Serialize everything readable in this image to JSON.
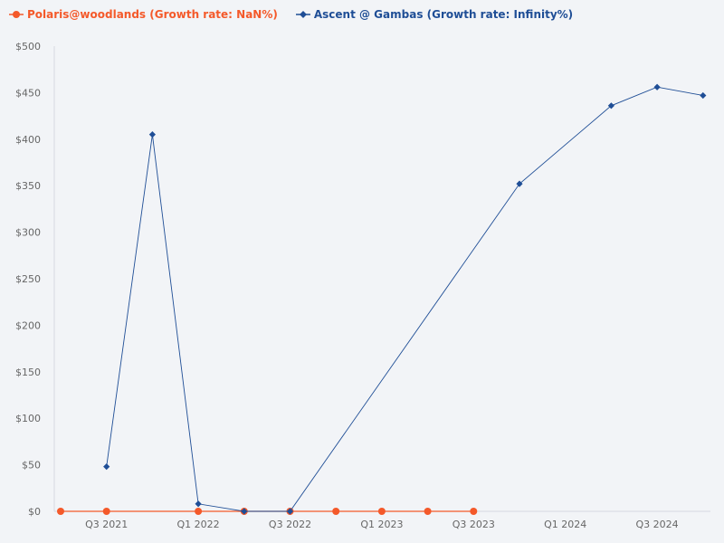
{
  "chart_data": {
    "type": "line",
    "title": "",
    "xlabel": "",
    "ylabel": "",
    "categories": [
      "Q2 2021",
      "Q3 2021",
      "Q4 2021",
      "Q1 2022",
      "Q2 2022",
      "Q3 2022",
      "Q4 2022",
      "Q1 2023",
      "Q2 2023",
      "Q3 2023",
      "Q4 2023",
      "Q1 2024",
      "Q2 2024",
      "Q3 2024",
      "Q4 2024"
    ],
    "x_tick_labels": [
      "Q3 2021",
      "Q1 2022",
      "Q3 2022",
      "Q1 2023",
      "Q3 2023",
      "Q1 2024",
      "Q3 2024"
    ],
    "y_tick_labels": [
      "$0",
      "$50",
      "$100",
      "$150",
      "$200",
      "$250",
      "$300",
      "$350",
      "$400",
      "$450",
      "$500"
    ],
    "ylim": [
      0,
      500
    ],
    "grid": false,
    "legend_position": "top-left",
    "series": [
      {
        "name": "Polaris@woodlands (Growth rate: NaN%)",
        "color": "#f4592a",
        "marker": "circle",
        "values": [
          0,
          0,
          null,
          0,
          0,
          0,
          0,
          0,
          0,
          0,
          null,
          null,
          null,
          null,
          null
        ]
      },
      {
        "name": "Ascent @ Gambas (Growth rate: Infinity%)",
        "color": "#1f4e96",
        "marker": "diamond",
        "values": [
          null,
          48,
          405,
          8,
          0,
          0,
          null,
          null,
          null,
          null,
          352,
          null,
          436,
          456,
          447
        ]
      }
    ]
  }
}
